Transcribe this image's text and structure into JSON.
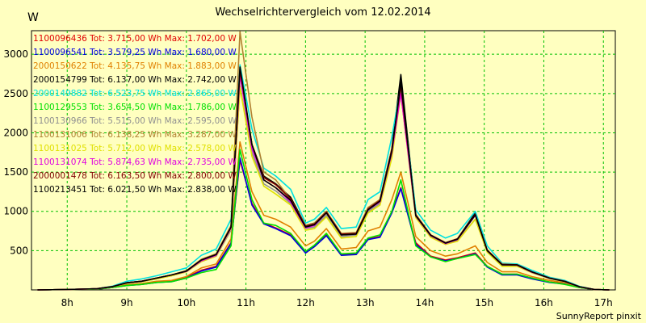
{
  "chart_data": {
    "type": "line",
    "title": "Wechselrichtervergleich vom 12.02.2014",
    "y_unit": "W",
    "footer": "SunnyReport pinxit",
    "ylim": [
      0,
      3300
    ],
    "xlim": [
      7.4,
      17.2
    ],
    "y_ticks": [
      {
        "value": 500,
        "label": "500"
      },
      {
        "value": 1000,
        "label": "1000"
      },
      {
        "value": 1500,
        "label": "1500"
      },
      {
        "value": 2000,
        "label": "2000"
      },
      {
        "value": 2500,
        "label": "2500"
      },
      {
        "value": 3000,
        "label": "3000"
      }
    ],
    "x_ticks": [
      {
        "value": 8,
        "label": "8h"
      },
      {
        "value": 9,
        "label": "9h"
      },
      {
        "value": 10,
        "label": "10h"
      },
      {
        "value": 11,
        "label": "11h"
      },
      {
        "value": 12,
        "label": "12h"
      },
      {
        "value": 13,
        "label": "13h"
      },
      {
        "value": 14,
        "label": "14h"
      },
      {
        "value": 15,
        "label": "15h"
      },
      {
        "value": 16,
        "label": "16h"
      },
      {
        "value": 17,
        "label": "17h"
      }
    ],
    "grid": true,
    "legend_position": "top-left",
    "x": [
      7.5,
      8.0,
      8.5,
      8.75,
      9.0,
      9.25,
      9.5,
      9.75,
      10.0,
      10.25,
      10.5,
      10.75,
      10.9,
      11.1,
      11.3,
      11.5,
      11.75,
      12.0,
      12.15,
      12.35,
      12.6,
      12.85,
      13.05,
      13.25,
      13.45,
      13.6,
      13.85,
      14.1,
      14.35,
      14.55,
      14.85,
      15.05,
      15.3,
      15.55,
      15.8,
      16.1,
      16.35,
      16.6,
      16.85,
      17.1
    ],
    "series": [
      {
        "name": "1100096436 Tot: 3.715,00 Wh Max: 1.702,00 W",
        "color": "#e00000",
        "values": [
          0,
          5,
          10,
          30,
          60,
          70,
          100,
          110,
          160,
          250,
          300,
          600,
          1650,
          1100,
          850,
          790,
          700,
          480,
          560,
          700,
          450,
          460,
          650,
          680,
          1000,
          1300,
          600,
          430,
          380,
          410,
          470,
          300,
          200,
          200,
          150,
          100,
          80,
          30,
          5,
          0
        ]
      },
      {
        "name": "1100096541 Tot: 3.579,25 Wh Max: 1.680,00 W",
        "color": "#0000e0",
        "values": [
          0,
          5,
          10,
          30,
          55,
          70,
          95,
          105,
          150,
          240,
          290,
          590,
          1680,
          1080,
          840,
          780,
          690,
          470,
          550,
          690,
          440,
          450,
          640,
          670,
          980,
          1290,
          580,
          420,
          370,
          400,
          460,
          290,
          190,
          190,
          140,
          95,
          75,
          30,
          5,
          0
        ]
      },
      {
        "name": "2000150622 Tot: 4.135,75 Wh Max: 1.883,00 W",
        "color": "#e08000",
        "values": [
          0,
          5,
          12,
          35,
          65,
          80,
          110,
          120,
          170,
          280,
          330,
          650,
          1883,
          1250,
          950,
          900,
          800,
          560,
          620,
          780,
          520,
          540,
          750,
          800,
          1150,
          1500,
          680,
          500,
          430,
          460,
          560,
          350,
          230,
          230,
          170,
          120,
          90,
          35,
          5,
          0
        ]
      },
      {
        "name": "2000154799 Tot: 6.137,00 Wh Max: 2.742,00 W",
        "color": "#000000",
        "values": [
          0,
          5,
          15,
          40,
          90,
          110,
          150,
          190,
          240,
          380,
          450,
          800,
          2742,
          1850,
          1450,
          1350,
          1180,
          820,
          850,
          1000,
          700,
          720,
          1030,
          1150,
          1800,
          2742,
          960,
          700,
          600,
          650,
          980,
          500,
          320,
          320,
          230,
          150,
          110,
          40,
          5,
          0
        ]
      },
      {
        "name": "2000149882 Tot: 6.523,75 Wh Max: 2.865,00 W",
        "color": "#00e0e0",
        "values": [
          0,
          5,
          15,
          45,
          110,
          140,
          180,
          230,
          280,
          440,
          520,
          900,
          2865,
          2050,
          1550,
          1450,
          1280,
          850,
          900,
          1050,
          780,
          800,
          1150,
          1250,
          1950,
          2600,
          1020,
          760,
          660,
          720,
          1000,
          560,
          340,
          330,
          250,
          160,
          120,
          45,
          5,
          0
        ]
      },
      {
        "name": "1100129553 Tot: 3.654,50 Wh Max: 1.786,00 W",
        "color": "#00e000",
        "values": [
          0,
          5,
          10,
          30,
          55,
          70,
          95,
          105,
          150,
          220,
          260,
          560,
          1786,
          1150,
          850,
          820,
          720,
          490,
          570,
          720,
          460,
          470,
          660,
          700,
          1000,
          1400,
          560,
          420,
          360,
          400,
          450,
          300,
          200,
          200,
          150,
          100,
          70,
          30,
          5,
          0
        ]
      },
      {
        "name": "1100130966 Tot: 5.515,00 Wh Max: 2.595,00 W",
        "color": "#909090",
        "values": [
          0,
          5,
          14,
          38,
          85,
          105,
          140,
          180,
          230,
          360,
          430,
          760,
          2595,
          1750,
          1350,
          1260,
          1100,
          780,
          800,
          950,
          680,
          700,
          1000,
          1100,
          1700,
          2550,
          930,
          680,
          580,
          630,
          900,
          490,
          310,
          310,
          220,
          145,
          105,
          38,
          5,
          0
        ]
      },
      {
        "name": "1100131006 Tot: 6.138,25 Wh Max: 3.287,00 W",
        "color": "#b08030",
        "values": [
          0,
          5,
          15,
          40,
          90,
          110,
          150,
          190,
          245,
          390,
          460,
          820,
          3287,
          2200,
          1500,
          1400,
          1150,
          820,
          850,
          1000,
          720,
          730,
          1050,
          1150,
          1800,
          2500,
          960,
          700,
          600,
          650,
          950,
          510,
          330,
          320,
          230,
          150,
          110,
          40,
          5,
          0
        ]
      },
      {
        "name": "1100131025 Tot: 5.712,00 Wh Max: 2.578,00 W",
        "color": "#e0e000",
        "values": [
          0,
          5,
          14,
          38,
          85,
          105,
          140,
          180,
          230,
          360,
          430,
          780,
          2578,
          1700,
          1320,
          1220,
          1080,
          760,
          780,
          930,
          660,
          680,
          980,
          1080,
          1680,
          2500,
          920,
          670,
          580,
          620,
          900,
          480,
          300,
          300,
          220,
          145,
          105,
          38,
          5,
          0
        ]
      },
      {
        "name": "1100131074 Tot: 5.874,63 Wh Max: 2.735,00 W",
        "color": "#e000e0",
        "values": [
          0,
          5,
          15,
          40,
          90,
          110,
          150,
          190,
          235,
          370,
          440,
          790,
          2735,
          1800,
          1400,
          1300,
          1120,
          790,
          820,
          980,
          700,
          710,
          1020,
          1120,
          1750,
          2500,
          940,
          690,
          590,
          640,
          950,
          500,
          320,
          315,
          225,
          148,
          108,
          40,
          5,
          0
        ]
      },
      {
        "name": "2000001478 Tot: 6.163,50 Wh Max: 2.800,00 W",
        "color": "#800000",
        "values": [
          0,
          5,
          15,
          40,
          90,
          110,
          150,
          190,
          240,
          380,
          450,
          800,
          2800,
          1850,
          1430,
          1340,
          1160,
          810,
          840,
          990,
          710,
          720,
          1030,
          1140,
          1790,
          2600,
          950,
          700,
          600,
          650,
          960,
          505,
          325,
          320,
          230,
          150,
          110,
          40,
          5,
          0
        ]
      },
      {
        "name": "1100213451 Tot: 6.021,50 Wh Max: 2.838,00 W",
        "color": "#000000",
        "values": [
          0,
          5,
          15,
          40,
          90,
          110,
          150,
          190,
          240,
          380,
          450,
          800,
          2838,
          1850,
          1400,
          1300,
          1140,
          800,
          830,
          980,
          700,
          710,
          1020,
          1130,
          1770,
          2650,
          945,
          695,
          595,
          645,
          955,
          500,
          320,
          318,
          228,
          148,
          108,
          40,
          5,
          0
        ]
      }
    ]
  }
}
